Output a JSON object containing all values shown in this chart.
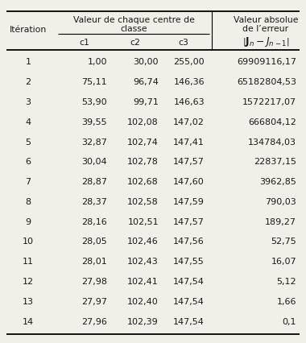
{
  "iterations": [
    1,
    2,
    3,
    4,
    5,
    6,
    7,
    8,
    9,
    10,
    11,
    12,
    13,
    14
  ],
  "c1": [
    "1,00",
    "75,11",
    "53,90",
    "39,55",
    "32,87",
    "30,04",
    "28,87",
    "28,37",
    "28,16",
    "28,05",
    "28,01",
    "27,98",
    "27,97",
    "27,96"
  ],
  "c2": [
    "30,00",
    "96,74",
    "99,71",
    "102,08",
    "102,74",
    "102,78",
    "102,68",
    "102,58",
    "102,51",
    "102,46",
    "102,43",
    "102,41",
    "102,40",
    "102,39"
  ],
  "c3": [
    "255,00",
    "146,36",
    "146,63",
    "147,02",
    "147,41",
    "147,57",
    "147,60",
    "147,59",
    "147,57",
    "147,56",
    "147,55",
    "147,54",
    "147,54",
    "147,54"
  ],
  "error": [
    "69909116,17",
    "65182804,53",
    "1572217,07",
    "666804,12",
    "134784,03",
    "22837,15",
    "3962,85",
    "790,03",
    "189,27",
    "52,75",
    "16,07",
    "5,12",
    "1,66",
    "0,1"
  ],
  "col_iteration": "Itération",
  "header_left_line1": "Valeur de chaque centre de",
  "header_left_line2": "classe",
  "header_right_line1": "Valeur absolue",
  "header_right_line2": "de l’erreur",
  "sub_c1": "c1",
  "sub_c2": "c2",
  "sub_c3": "c3",
  "bg_color": "#f0efe8",
  "text_color": "#1a1a1a",
  "font_size": 8.0,
  "header_font_size": 7.8
}
